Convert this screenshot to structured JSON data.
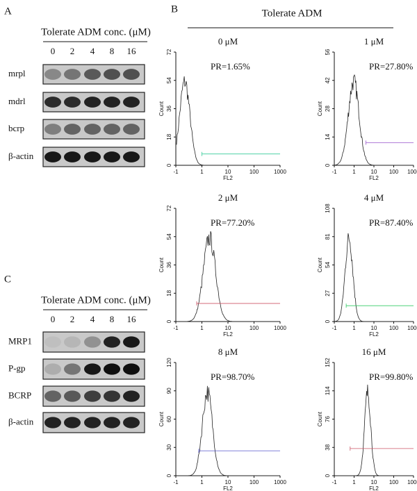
{
  "panel_a": {
    "letter": "A",
    "header": "Tolerate ADM conc. (μM)",
    "lanes": [
      "0",
      "2",
      "4",
      "8",
      "16"
    ],
    "rows": [
      "mrpl",
      "mdrl",
      "bcrp",
      "β-actin"
    ]
  },
  "panel_b": {
    "letter": "B",
    "header": "Tolerate ADM",
    "x_label": "FL2",
    "y_label": "Count",
    "xticks": [
      "-1",
      "1",
      "10",
      "100",
      "1000"
    ],
    "panels": [
      {
        "title": "0 μM",
        "pr": "PR=1.65%",
        "yticks": [
          "72",
          "54",
          "36",
          "18",
          "0"
        ]
      },
      {
        "title": "1 μM",
        "pr": "PR=27.80%",
        "yticks": [
          "56",
          "42",
          "28",
          "14",
          "0"
        ]
      },
      {
        "title": "2 μM",
        "pr": "PR=77.20%",
        "yticks": [
          "72",
          "54",
          "36",
          "18",
          "0"
        ]
      },
      {
        "title": "4 μM",
        "pr": "PR=87.40%",
        "yticks": [
          "108",
          "81",
          "54",
          "27",
          "0"
        ]
      },
      {
        "title": "8 μM",
        "pr": "PR=98.70%",
        "yticks": [
          "120",
          "90",
          "60",
          "30",
          "0"
        ]
      },
      {
        "title": "16 μM",
        "pr": "PR=99.80%",
        "yticks": [
          "152",
          "114",
          "76",
          "38",
          "0"
        ]
      }
    ]
  },
  "panel_c": {
    "letter": "C",
    "header": "Tolerate ADM conc. (μM)",
    "lanes": [
      "0",
      "2",
      "4",
      "8",
      "16"
    ],
    "rows": [
      "MRP1",
      "P-gp",
      "BCRP",
      "β-actin"
    ]
  }
}
